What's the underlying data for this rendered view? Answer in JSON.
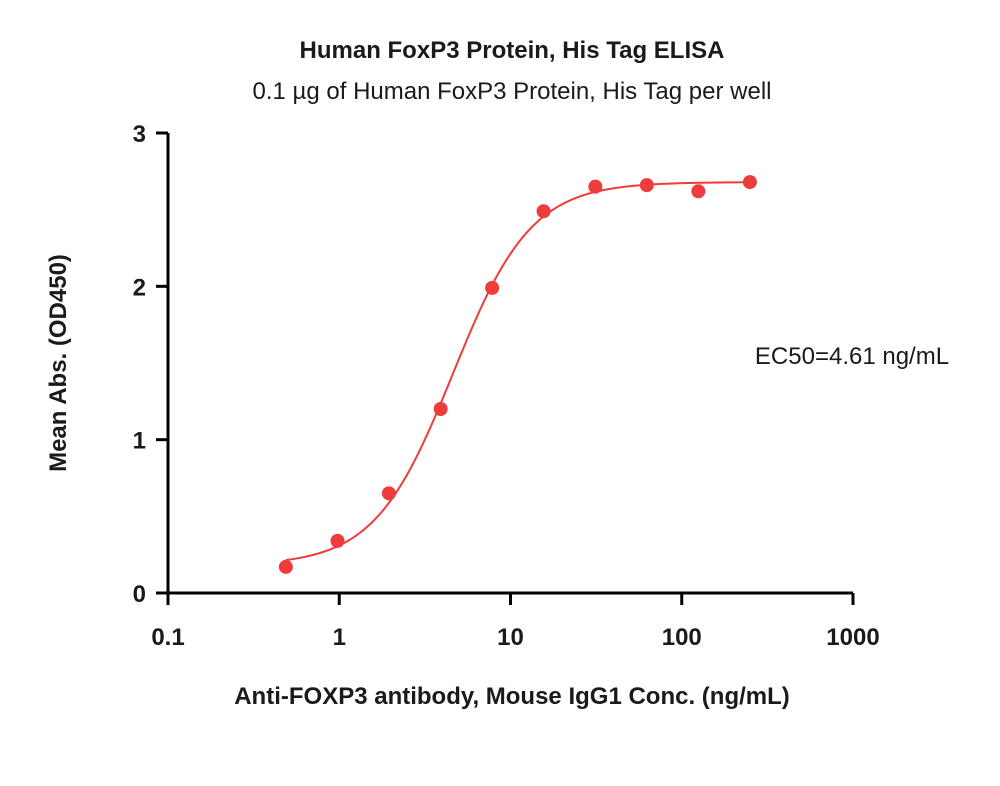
{
  "chart_data": {
    "type": "scatter",
    "title": "Human FoxP3 Protein, His Tag ELISA",
    "subtitle": "0.1 µg of Human FoxP3 Protein, His Tag per well",
    "xlabel": "Anti-FOXP3 antibody, Mouse IgG1 Conc. (ng/mL)",
    "ylabel": "Mean Abs. (OD450)",
    "x_scale": "log",
    "xlim": [
      0.1,
      1000
    ],
    "ylim": [
      0,
      3
    ],
    "x_ticks": [
      0.1,
      1,
      10,
      100,
      1000
    ],
    "x_tick_labels": [
      "0.1",
      "1",
      "10",
      "100",
      "1000"
    ],
    "y_ticks": [
      0,
      1,
      2,
      3
    ],
    "y_tick_labels": [
      "0",
      "1",
      "2",
      "3"
    ],
    "grid": false,
    "legend": "none",
    "color": "#ee3b3b",
    "series": [
      {
        "x": [
          0.488,
          0.977,
          1.95,
          3.91,
          7.81,
          15.6,
          31.3,
          62.5,
          125,
          250
        ],
        "y": [
          0.17,
          0.34,
          0.65,
          1.2,
          1.99,
          2.49,
          2.65,
          2.66,
          2.62,
          2.68
        ]
      }
    ],
    "fit": {
      "model": "4PL",
      "bottom": 0.18,
      "top": 2.68,
      "ec50": 4.61,
      "hill": 1.9
    },
    "annotation": "EC50=4.61  ng/mL"
  }
}
